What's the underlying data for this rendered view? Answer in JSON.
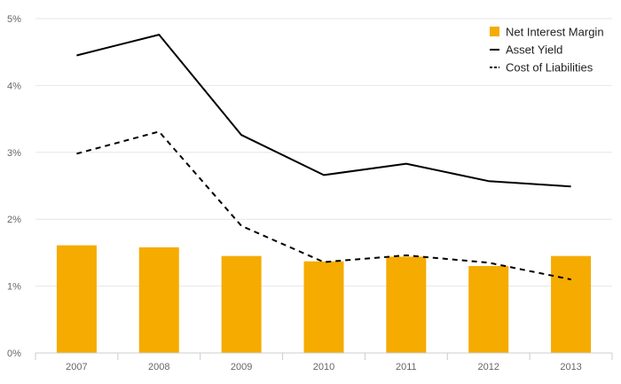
{
  "chart_data": {
    "type": "bar",
    "categories": [
      "2007",
      "2008",
      "2009",
      "2010",
      "2011",
      "2012",
      "2013"
    ],
    "ylim": [
      0,
      5
    ],
    "yticks": [
      0,
      1,
      2,
      3,
      4,
      5
    ],
    "ytick_labels": [
      "0%",
      "1%",
      "2%",
      "3%",
      "4%",
      "5%"
    ],
    "grid": "horizontal",
    "legend_position": "top-right",
    "series": [
      {
        "name": "Net Interest Margin",
        "kind": "bar",
        "color": "#f5ab00",
        "values": [
          1.61,
          1.58,
          1.45,
          1.37,
          1.44,
          1.3,
          1.45
        ]
      },
      {
        "name": "Asset Yield",
        "kind": "line",
        "style": "solid",
        "color": "#000000",
        "values": [
          4.45,
          4.76,
          3.26,
          2.66,
          2.83,
          2.57,
          2.49
        ]
      },
      {
        "name": "Cost of Liabilities",
        "kind": "line",
        "style": "dashed",
        "color": "#000000",
        "values": [
          2.98,
          3.31,
          1.9,
          1.36,
          1.46,
          1.35,
          1.1
        ]
      }
    ]
  }
}
